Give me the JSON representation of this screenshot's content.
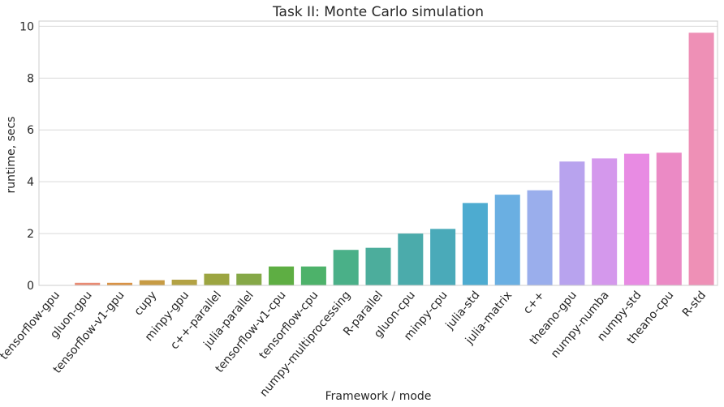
{
  "chart_data": {
    "type": "bar",
    "title": "Task II: Monte Carlo simulation",
    "xlabel": "Framework / mode",
    "ylabel": "runtime, secs",
    "ylim": [
      0,
      10.2
    ],
    "yticks": [
      0,
      2,
      4,
      6,
      8,
      10
    ],
    "grid": "horizontal",
    "categories": [
      "tensorflow-gpu",
      "gluon-gpu",
      "tensorflow-v1-gpu",
      "cupy",
      "minpy-gpu",
      "c++-parallel",
      "julia-parallel",
      "tensorflow-v1-cpu",
      "tensorflow-cpu",
      "numpy-multiprocessing",
      "R-parallel",
      "gluon-cpu",
      "minpy-cpu",
      "julia-std",
      "julia-matrix",
      "c++",
      "theano-gpu",
      "numpy-numba",
      "numpy-std",
      "theano-cpu",
      "R-std"
    ],
    "values": [
      0.01,
      0.1,
      0.1,
      0.2,
      0.22,
      0.45,
      0.45,
      0.73,
      0.73,
      1.37,
      1.45,
      2.0,
      2.18,
      3.18,
      3.5,
      3.67,
      4.78,
      4.9,
      5.08,
      5.12,
      9.75
    ],
    "colors": [
      "#f07d7d",
      "#e98b73",
      "#d99245",
      "#c79b44",
      "#b3a244",
      "#9ca541",
      "#85a847",
      "#5eae43",
      "#4db26a",
      "#4ab088",
      "#4cad9c",
      "#4babab",
      "#4aaab9",
      "#4dabd0",
      "#6aafe2",
      "#9aaeec",
      "#b8a3ee",
      "#d498ec",
      "#e88be3",
      "#eb8ac5",
      "#ee90b6"
    ]
  }
}
